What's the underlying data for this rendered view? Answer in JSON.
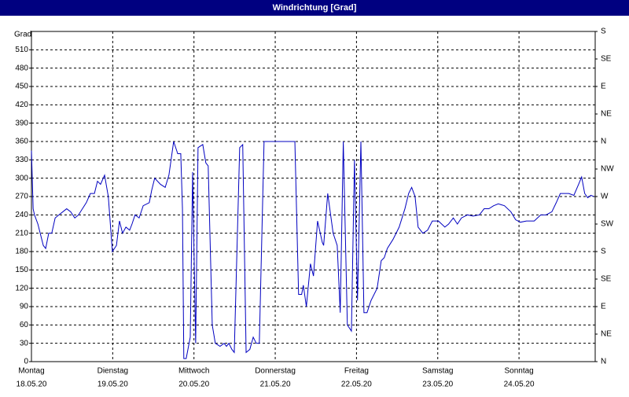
{
  "chart_data": {
    "type": "line",
    "title": "Windrichtung [Grad]",
    "ylabel": "Grad",
    "xlim": [
      0,
      166.5
    ],
    "xticks": [
      {
        "value": 0,
        "label": "Montag",
        "sublabel": "18.05.20"
      },
      {
        "value": 24,
        "label": "Dienstag",
        "sublabel": "19.05.20"
      },
      {
        "value": 48,
        "label": "Mittwoch",
        "sublabel": "20.05.20"
      },
      {
        "value": 72,
        "label": "Donnerstag",
        "sublabel": "21.05.20"
      },
      {
        "value": 96,
        "label": "Freitag",
        "sublabel": "22.05.20"
      },
      {
        "value": 120,
        "label": "Samstag",
        "sublabel": "23.05.20"
      },
      {
        "value": 144,
        "label": "Sonntag",
        "sublabel": "24.05.20"
      }
    ],
    "ylim": [
      0,
      540
    ],
    "yticks": [
      0,
      30,
      60,
      90,
      120,
      150,
      180,
      210,
      240,
      270,
      300,
      330,
      360,
      390,
      420,
      450,
      480,
      510
    ],
    "y2lim": [
      0,
      540
    ],
    "y2ticks": [
      {
        "value": 0,
        "label": "N"
      },
      {
        "value": 45,
        "label": "NE"
      },
      {
        "value": 90,
        "label": "E"
      },
      {
        "value": 135,
        "label": "SE"
      },
      {
        "value": 180,
        "label": "S"
      },
      {
        "value": 225,
        "label": "SW"
      },
      {
        "value": 270,
        "label": "W"
      },
      {
        "value": 315,
        "label": "NW"
      },
      {
        "value": 360,
        "label": "N"
      },
      {
        "value": 405,
        "label": "NE"
      },
      {
        "value": 450,
        "label": "E"
      },
      {
        "value": 495,
        "label": "SE"
      },
      {
        "value": 540,
        "label": "S"
      }
    ],
    "grid": true,
    "x": [
      0,
      0.5,
      0.9,
      1.9,
      3.5,
      4.2,
      5.1,
      6.0,
      7.0,
      8.1,
      10.4,
      11.6,
      12.8,
      13.9,
      16.2,
      17.4,
      18.6,
      19.5,
      20.4,
      21.6,
      22.7,
      23.9,
      25.1,
      26.0,
      26.9,
      27.9,
      29.0,
      29.7,
      30.6,
      31.8,
      33.0,
      34.8,
      35.5,
      36.4,
      38.1,
      39.5,
      40.6,
      42.0,
      43.2,
      44.1,
      44.6,
      45.0,
      45.7,
      46.9,
      47.6,
      48.5,
      49.2,
      50.6,
      51.5,
      52.2,
      53.4,
      54.3,
      55.7,
      56.9,
      57.6,
      58.3,
      59.2,
      59.9,
      61.5,
      62.4,
      63.4,
      64.5,
      65.5,
      66.4,
      67.3,
      68.7,
      77.8,
      78.9,
      79.8,
      80.3,
      81.2,
      82.4,
      83.3,
      84.5,
      85.9,
      86.3,
      87.5,
      89.1,
      90.3,
      91.2,
      92.1,
      93.3,
      94.5,
      95.4,
      96.3,
      97.3,
      98.2,
      99.1,
      100.3,
      102.1,
      103.3,
      104.2,
      105.1,
      106.8,
      108.6,
      110.3,
      111.4,
      112.3,
      113.3,
      114.2,
      115.6,
      117.0,
      118.4,
      120.2,
      122.1,
      123.2,
      124.6,
      125.8,
      127.0,
      128.8,
      130.4,
      132.3,
      133.7,
      135.1,
      136.5,
      137.9,
      139.7,
      141.6,
      143.0,
      144.4,
      146.2,
      148.5,
      150.4,
      152.0,
      153.7,
      155.0,
      156.2,
      158.7,
      160.2,
      161.6,
      162.5,
      163.4,
      164.3,
      165.2,
      166.1
    ],
    "series": [
      {
        "name": "Windrichtung",
        "color": "#0000c0",
        "values": [
          345,
          250,
          240,
          225,
          190,
          185,
          210,
          210,
          235,
          240,
          250,
          245,
          235,
          240,
          260,
          275,
          275,
          295,
          290,
          305,
          270,
          180,
          190,
          230,
          210,
          220,
          215,
          225,
          240,
          235,
          255,
          260,
          280,
          300,
          290,
          285,
          305,
          360,
          340,
          340,
          250,
          5,
          5,
          40,
          310,
          30,
          350,
          355,
          325,
          320,
          60,
          30,
          25,
          30,
          25,
          30,
          20,
          15,
          350,
          355,
          15,
          20,
          40,
          30,
          30,
          360,
          360,
          110,
          110,
          125,
          90,
          160,
          140,
          230,
          195,
          190,
          275,
          210,
          190,
          80,
          360,
          60,
          50,
          330,
          100,
          360,
          80,
          80,
          100,
          120,
          165,
          170,
          185,
          200,
          220,
          250,
          275,
          285,
          270,
          220,
          210,
          215,
          230,
          230,
          220,
          225,
          235,
          225,
          235,
          240,
          238,
          240,
          250,
          250,
          255,
          258,
          255,
          245,
          232,
          228,
          230,
          230,
          240,
          240,
          245,
          260,
          275,
          275,
          272,
          290,
          302,
          275,
          268,
          272,
          270
        ]
      }
    ]
  }
}
